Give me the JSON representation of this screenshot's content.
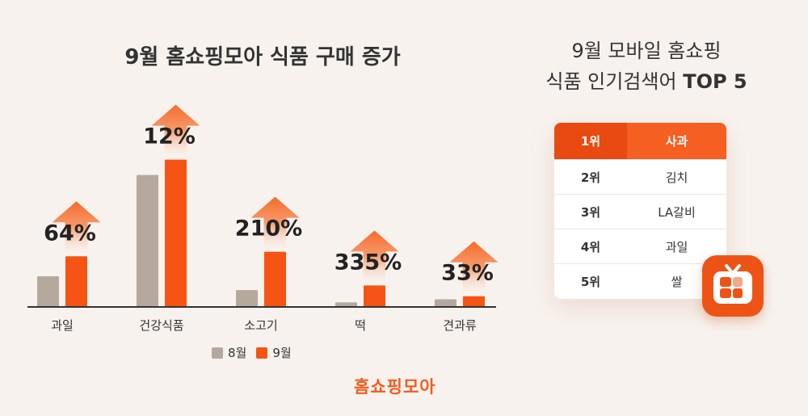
{
  "chart_title": "9월 홈쇼핑모아 식품 구매 증가",
  "chart_data": {
    "type": "bar",
    "title": "9월 홈쇼핑모아 식품 구매 증가",
    "categories": [
      "과일",
      "건강식품",
      "소고기",
      "떡",
      "견과류"
    ],
    "series": [
      {
        "name": "8월",
        "values": [
          20,
          86,
          11,
          3,
          5
        ]
      },
      {
        "name": "9월",
        "values": [
          33,
          96,
          36,
          14,
          7
        ]
      }
    ],
    "growth_labels": [
      "64%",
      "12%",
      "210%",
      "335%",
      "33%"
    ],
    "ylim": [
      0,
      100
    ],
    "grid": false,
    "legend_position": "bottom-center",
    "colors": {
      "8월": "#b5a99d",
      "9월": "#f55414",
      "arrow": "#f67a3c"
    }
  },
  "legend": [
    {
      "label": "8월",
      "color": "#b5a99d"
    },
    {
      "label": "9월",
      "color": "#f55414"
    }
  ],
  "brand": "홈쇼핑모아",
  "ranking": {
    "title_line1": "9월 모바일 홈쇼핑",
    "title_line2_prefix": "식품 인기검색어",
    "title_line2_strong": "TOP 5",
    "rows": [
      {
        "rank": "1위",
        "item": "사과"
      },
      {
        "rank": "2위",
        "item": "김치"
      },
      {
        "rank": "3위",
        "item": "LA갈비"
      },
      {
        "rank": "4위",
        "item": "과일"
      },
      {
        "rank": "5위",
        "item": "쌀"
      }
    ]
  },
  "tv_icon": "tv-icon"
}
